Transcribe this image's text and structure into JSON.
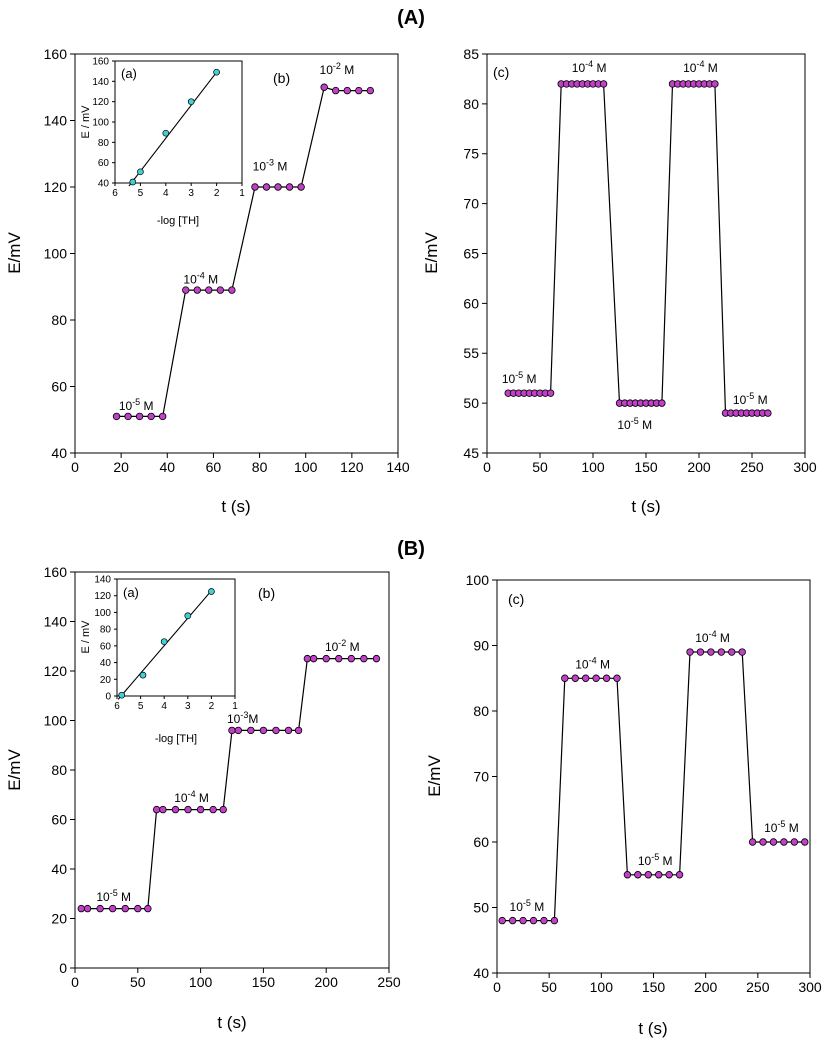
{
  "panel_labels": {
    "A": "(A)",
    "B": "(B)"
  },
  "colors": {
    "main_marker": "#c040c8",
    "inset_marker": "#40d0d8",
    "line": "#000000"
  },
  "chart_data": [
    {
      "id": "A-b",
      "type": "line",
      "panel_tag": "(b)",
      "xlabel": "t (s)",
      "ylabel": "E/mV",
      "xlim": [
        0,
        140
      ],
      "ylim": [
        40,
        160
      ],
      "xticks": [
        0,
        20,
        40,
        60,
        80,
        100,
        120,
        140
      ],
      "yticks": [
        40,
        60,
        80,
        100,
        120,
        140,
        160
      ],
      "series": [
        {
          "name": "E",
          "x": [
            18,
            23,
            28,
            33,
            38,
            48,
            53,
            58,
            63,
            68,
            78,
            83,
            88,
            93,
            98,
            108,
            113,
            118,
            123,
            128
          ],
          "y": [
            51,
            51,
            51,
            51,
            51,
            89,
            89,
            89,
            89,
            89,
            120,
            120,
            120,
            120,
            120,
            150,
            149,
            149,
            149,
            149
          ]
        }
      ],
      "annotations": [
        {
          "base": "10",
          "exp": "-5",
          "unit": "M",
          "x": 19,
          "y": 53
        },
        {
          "base": "10",
          "exp": "-4",
          "unit": "M",
          "x": 47,
          "y": 91
        },
        {
          "base": "10",
          "exp": "-3",
          "unit": "M",
          "x": 77,
          "y": 125
        },
        {
          "base": "10",
          "exp": "-2",
          "unit": "M",
          "x": 106,
          "y": 154
        }
      ],
      "inset": {
        "panel_tag": "(a)",
        "xlabel": "-log [TH]",
        "ylabel": "E / mV",
        "xlim": [
          6,
          1
        ],
        "ylim": [
          40,
          160
        ],
        "xticks": [
          6,
          5,
          4,
          3,
          2,
          1
        ],
        "yticks": [
          40,
          60,
          80,
          100,
          120,
          140,
          160
        ],
        "points": {
          "x": [
            5.3,
            5.0,
            4.0,
            3.0,
            2.0
          ],
          "y": [
            41,
            51,
            89,
            120,
            149
          ]
        },
        "fit": {
          "x": [
            5.45,
            2.0
          ],
          "y": [
            37,
            149
          ]
        }
      }
    },
    {
      "id": "A-c",
      "type": "line",
      "panel_tag": "(c)",
      "xlabel": "t (s)",
      "ylabel": "E/mV",
      "xlim": [
        0,
        300
      ],
      "ylim": [
        45,
        85
      ],
      "xticks": [
        0,
        50,
        100,
        150,
        200,
        250,
        300
      ],
      "yticks": [
        45,
        50,
        55,
        60,
        65,
        70,
        75,
        80,
        85
      ],
      "series": [
        {
          "name": "E",
          "x": [
            20,
            25,
            30,
            35,
            40,
            45,
            50,
            55,
            60,
            70,
            75,
            80,
            85,
            90,
            95,
            100,
            105,
            110,
            125,
            130,
            135,
            140,
            145,
            150,
            155,
            160,
            165,
            175,
            180,
            185,
            190,
            195,
            200,
            205,
            210,
            215,
            225,
            230,
            235,
            240,
            245,
            250,
            255,
            260,
            265
          ],
          "y": [
            51,
            51,
            51,
            51,
            51,
            51,
            51,
            51,
            51,
            82,
            82,
            82,
            82,
            82,
            82,
            82,
            82,
            82,
            50,
            50,
            50,
            50,
            50,
            50,
            50,
            50,
            50,
            82,
            82,
            82,
            82,
            82,
            82,
            82,
            82,
            82,
            49,
            49,
            49,
            49,
            49,
            49,
            49,
            49,
            49
          ]
        }
      ],
      "annotations": [
        {
          "base": "10",
          "exp": "-5",
          "unit": "M",
          "x": 14,
          "y": 52
        },
        {
          "base": "10",
          "exp": "-4",
          "unit": "M",
          "x": 80,
          "y": 83.2
        },
        {
          "base": "10",
          "exp": "-5",
          "unit": "M",
          "x": 123,
          "y": 47.4
        },
        {
          "base": "10",
          "exp": "-4",
          "unit": "M",
          "x": 185,
          "y": 83.2
        },
        {
          "base": "10",
          "exp": "-5",
          "unit": "M",
          "x": 232,
          "y": 49.9
        }
      ]
    },
    {
      "id": "B-b",
      "type": "line",
      "panel_tag": "(b)",
      "xlabel": "t (s)",
      "ylabel": "E/mV",
      "xlim": [
        0,
        250
      ],
      "ylim": [
        0,
        160
      ],
      "xticks": [
        0,
        50,
        100,
        150,
        200,
        250
      ],
      "yticks": [
        0,
        20,
        40,
        60,
        80,
        100,
        120,
        140,
        160
      ],
      "series": [
        {
          "name": "E",
          "x": [
            5,
            10,
            20,
            30,
            40,
            50,
            58,
            65,
            70,
            80,
            90,
            100,
            110,
            118,
            125,
            130,
            140,
            150,
            160,
            170,
            178,
            185,
            190,
            200,
            210,
            220,
            230,
            240
          ],
          "y": [
            24,
            24,
            24,
            24,
            24,
            24,
            24,
            64,
            64,
            64,
            64,
            64,
            64,
            64,
            96,
            96,
            96,
            96,
            96,
            96,
            96,
            125,
            125,
            125,
            125,
            125,
            125,
            125
          ]
        }
      ],
      "annotations": [
        {
          "base": "10",
          "exp": "-5",
          "unit": "M",
          "x": 17,
          "y": 27
        },
        {
          "base": "10",
          "exp": "-4",
          "unit": "M",
          "x": 79,
          "y": 67
        },
        {
          "base": "10",
          "exp": "-3",
          "unit": "M",
          "x": 121,
          "y": 99,
          "nospace": true
        },
        {
          "base": "10",
          "exp": "-2",
          "unit": "M",
          "x": 199,
          "y": 128
        }
      ],
      "inset": {
        "panel_tag": "(a)",
        "xlabel": "-log [TH]",
        "ylabel": "E / mV",
        "xlim": [
          6,
          1
        ],
        "ylim": [
          0,
          140
        ],
        "xticks": [
          6,
          5,
          4,
          3,
          2,
          1
        ],
        "yticks": [
          0,
          20,
          40,
          60,
          80,
          100,
          120,
          140
        ],
        "points": {
          "x": [
            5.8,
            4.9,
            4.0,
            3.0,
            2.0
          ],
          "y": [
            1,
            25,
            65,
            96,
            125
          ]
        },
        "fit": {
          "x": [
            5.95,
            2.0
          ],
          "y": [
            -4,
            126
          ]
        }
      }
    },
    {
      "id": "B-c",
      "type": "line",
      "panel_tag": "(c)",
      "xlabel": "t (s)",
      "ylabel": "E/mV",
      "xlim": [
        0,
        300
      ],
      "ylim": [
        40,
        100
      ],
      "xticks": [
        0,
        50,
        100,
        150,
        200,
        250,
        300
      ],
      "yticks": [
        40,
        50,
        60,
        70,
        80,
        90,
        100
      ],
      "series": [
        {
          "name": "E",
          "x": [
            5,
            15,
            25,
            35,
            45,
            55,
            65,
            75,
            85,
            95,
            105,
            115,
            125,
            135,
            145,
            155,
            165,
            175,
            185,
            195,
            205,
            215,
            225,
            235,
            245,
            255,
            265,
            275,
            285,
            295
          ],
          "y": [
            48,
            48,
            48,
            48,
            48,
            48,
            85,
            85,
            85,
            85,
            85,
            85,
            55,
            55,
            55,
            55,
            55,
            55,
            89,
            89,
            89,
            89,
            89,
            89,
            60,
            60,
            60,
            60,
            60,
            60
          ]
        }
      ],
      "annotations": [
        {
          "base": "10",
          "exp": "-5",
          "unit": "M",
          "x": 12,
          "y": 49.5
        },
        {
          "base": "10",
          "exp": "-4",
          "unit": "M",
          "x": 75,
          "y": 86.5
        },
        {
          "base": "10",
          "exp": "-5",
          "unit": "M",
          "x": 135,
          "y": 56.5
        },
        {
          "base": "10",
          "exp": "-4",
          "unit": "M",
          "x": 190,
          "y": 90.5
        },
        {
          "base": "10",
          "exp": "-5",
          "unit": "M",
          "x": 256,
          "y": 61.5
        }
      ]
    }
  ]
}
